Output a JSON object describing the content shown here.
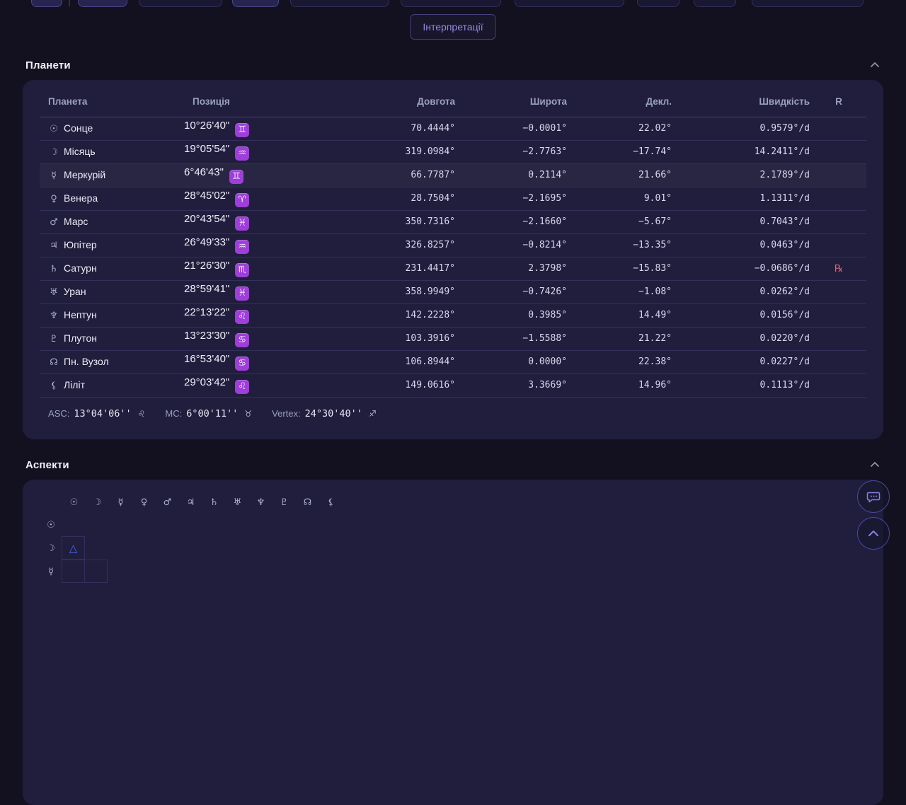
{
  "colors": {
    "accent_purple": "#948ae3",
    "badge_bg": "#9d3fd8",
    "badge_text": "#f6e6ff",
    "trine_blue": "#4a6cf7",
    "retrograde_red": "#e25f6d",
    "panel_bg": "#201e3c",
    "page_bg": "#131120"
  },
  "toolbar": {
    "interpretations_label": "Інтерпретації"
  },
  "planets_section": {
    "title": "Планети",
    "table": {
      "headers": {
        "planet": "Планета",
        "position": "Позиція",
        "longitude": "Довгота",
        "latitude": "Широта",
        "declination": "Декл.",
        "speed": "Швидкість",
        "retrograde": "R"
      },
      "rows": [
        {
          "symbol": "☉",
          "name": "Сонце",
          "position": "10°26'40\"",
          "sign": "♊",
          "longitude": "70.4444°",
          "latitude": "−0.0001°",
          "declination": "22.02°",
          "speed": "0.9579°/d",
          "retrograde": "",
          "highlighted": false
        },
        {
          "symbol": "☽",
          "name": "Місяць",
          "position": "19°05'54\"",
          "sign": "♒",
          "longitude": "319.0984°",
          "latitude": "−2.7763°",
          "declination": "−17.74°",
          "speed": "14.2411°/d",
          "retrograde": "",
          "highlighted": false
        },
        {
          "symbol": "☿",
          "name": "Меркурій",
          "position": "6°46'43\"",
          "sign": "♊",
          "longitude": "66.7787°",
          "latitude": "0.2114°",
          "declination": "21.66°",
          "speed": "2.1789°/d",
          "retrograde": "",
          "highlighted": true
        },
        {
          "symbol": "♀",
          "name": "Венера",
          "position": "28°45'02\"",
          "sign": "♈",
          "longitude": "28.7504°",
          "latitude": "−2.1695°",
          "declination": "9.01°",
          "speed": "1.1311°/d",
          "retrograde": "",
          "highlighted": false
        },
        {
          "symbol": "♂",
          "name": "Марс",
          "position": "20°43'54\"",
          "sign": "♓",
          "longitude": "350.7316°",
          "latitude": "−2.1660°",
          "declination": "−5.67°",
          "speed": "0.7043°/d",
          "retrograde": "",
          "highlighted": false
        },
        {
          "symbol": "♃",
          "name": "Юпітер",
          "position": "26°49'33\"",
          "sign": "♒",
          "longitude": "326.8257°",
          "latitude": "−0.8214°",
          "declination": "−13.35°",
          "speed": "0.0463°/d",
          "retrograde": "",
          "highlighted": false
        },
        {
          "symbol": "♄",
          "name": "Сатурн",
          "position": "21°26'30\"",
          "sign": "♏",
          "longitude": "231.4417°",
          "latitude": "2.3798°",
          "declination": "−15.83°",
          "speed": "−0.0686°/d",
          "retrograde": "℞",
          "highlighted": false
        },
        {
          "symbol": "♅",
          "name": "Уран",
          "position": "28°59'41\"",
          "sign": "♓",
          "longitude": "358.9949°",
          "latitude": "−0.7426°",
          "declination": "−1.08°",
          "speed": "0.0262°/d",
          "retrograde": "",
          "highlighted": false
        },
        {
          "symbol": "♆",
          "name": "Нептун",
          "position": "22°13'22\"",
          "sign": "♌",
          "longitude": "142.2228°",
          "latitude": "0.3985°",
          "declination": "14.49°",
          "speed": "0.0156°/d",
          "retrograde": "",
          "highlighted": false
        },
        {
          "symbol": "♇",
          "name": "Плутон",
          "position": "13°23'30\"",
          "sign": "♋",
          "longitude": "103.3916°",
          "latitude": "−1.5588°",
          "declination": "21.22°",
          "speed": "0.0220°/d",
          "retrograde": "",
          "highlighted": false
        },
        {
          "symbol": "☊",
          "name": "Пн. Вузол",
          "position": "16°53'40\"",
          "sign": "♋",
          "longitude": "106.8944°",
          "latitude": "0.0000°",
          "declination": "22.38°",
          "speed": "0.0227°/d",
          "retrograde": "",
          "highlighted": false
        },
        {
          "symbol": "⚸",
          "name": "Ліліт",
          "position": "29°03'42\"",
          "sign": "♌",
          "longitude": "149.0616°",
          "latitude": "3.3669°",
          "declination": "14.96°",
          "speed": "0.1113°/d",
          "retrograde": "",
          "highlighted": false
        }
      ]
    },
    "angles": [
      {
        "label": "ASC:",
        "value": "13°04'06''",
        "sign": "♌"
      },
      {
        "label": "MC:",
        "value": "6°00'11''",
        "sign": "♉"
      },
      {
        "label": "Vertex:",
        "value": "24°30'40''",
        "sign": "♐"
      }
    ]
  },
  "aspects_section": {
    "title": "Аспекти",
    "matrix": {
      "column_symbols": [
        "☉",
        "☽",
        "☿",
        "♀",
        "♂",
        "♃",
        "♄",
        "♅",
        "♆",
        "♇",
        "☊",
        "⚸"
      ],
      "rows": [
        {
          "symbol": "☉",
          "cells": []
        },
        {
          "symbol": "☽",
          "cells": [
            {
              "aspect": "△",
              "type": "trine"
            }
          ]
        },
        {
          "symbol": "☿",
          "cells": [
            {
              "aspect": "",
              "type": ""
            },
            {
              "aspect": "",
              "type": ""
            }
          ]
        }
      ]
    }
  }
}
